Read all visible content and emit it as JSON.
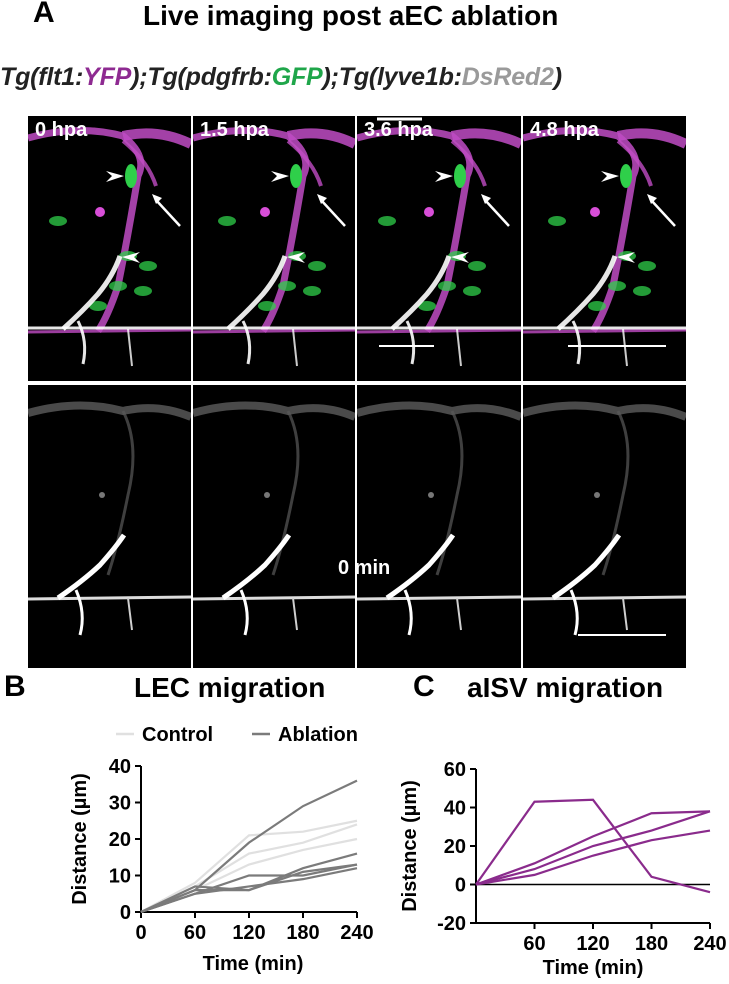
{
  "figure": {
    "panel_a": {
      "letter": "A",
      "title": "Live imaging post aEC ablation",
      "genotype": [
        {
          "text": "Tg(flt1:",
          "color": "#222222"
        },
        {
          "text": "YFP",
          "color": "#8e2a91"
        },
        {
          "text": ");Tg(pdgfrb:",
          "color": "#222222"
        },
        {
          "text": "GFP",
          "color": "#1fa64a"
        },
        {
          "text": ");Tg(lyve1b:",
          "color": "#222222"
        },
        {
          "text": "DsRed2",
          "color": "#9a9a9a"
        },
        {
          "text": ")",
          "color": "#222222"
        }
      ],
      "timepoints": [
        "0 hpa",
        "1.5 hpa",
        "3.6 hpa",
        "4.8 hpa"
      ],
      "lower_row_label": "0 min"
    },
    "panel_b": {
      "letter": "B",
      "title": "LEC migration"
    },
    "panel_c": {
      "letter": "C",
      "title": "aISV migration"
    }
  },
  "colors": {
    "control": "#e0e0e0",
    "ablation": "#7b7b7b",
    "aisv": "#8a2b8c",
    "vessel": "#c04cc4",
    "pericyte": "#2fcf4a"
  },
  "chart_data": [
    {
      "type": "line",
      "title": "LEC migration",
      "xlabel": "Time (min)",
      "ylabel": "Distance (µm)",
      "xlim": [
        0,
        240
      ],
      "ylim": [
        0,
        40
      ],
      "xticks": [
        0,
        60,
        120,
        180,
        240
      ],
      "yticks": [
        0,
        10,
        20,
        30,
        40
      ],
      "legend": {
        "position": "top",
        "entries": [
          "Control",
          "Ablation"
        ]
      },
      "series": [
        {
          "name": "Control",
          "x": [
            0,
            60,
            120,
            180,
            240
          ],
          "values": [
            0,
            8,
            21,
            22,
            25
          ]
        },
        {
          "name": "Control",
          "x": [
            0,
            60,
            120,
            180,
            240
          ],
          "values": [
            0,
            7,
            16,
            19,
            24
          ]
        },
        {
          "name": "Control",
          "x": [
            0,
            60,
            120,
            180,
            240
          ],
          "values": [
            0,
            6,
            13,
            17,
            20
          ]
        },
        {
          "name": "Ablation",
          "x": [
            0,
            60,
            120,
            180,
            240
          ],
          "values": [
            0,
            6,
            19,
            29,
            36
          ]
        },
        {
          "name": "Ablation",
          "x": [
            0,
            60,
            120,
            180,
            240
          ],
          "values": [
            0,
            7,
            6,
            12,
            16
          ]
        },
        {
          "name": "Ablation",
          "x": [
            0,
            60,
            120,
            180,
            240
          ],
          "values": [
            0,
            5,
            10,
            10,
            13
          ]
        },
        {
          "name": "Ablation",
          "x": [
            0,
            60,
            120,
            180,
            240
          ],
          "values": [
            0,
            6,
            6,
            11,
            13
          ]
        },
        {
          "name": "Ablation",
          "x": [
            0,
            60,
            120,
            180,
            240
          ],
          "values": [
            0,
            5,
            7,
            9,
            12
          ]
        }
      ]
    },
    {
      "type": "line",
      "title": "aISV migration",
      "xlabel": "Time (min)",
      "ylabel": "Distance (µm)",
      "xlim": [
        0,
        240
      ],
      "ylim": [
        -20,
        60
      ],
      "xticks": [
        60,
        120,
        180,
        240
      ],
      "yticks": [
        -20,
        0,
        20,
        40,
        60
      ],
      "series": [
        {
          "x": [
            0,
            60,
            120,
            180,
            240
          ],
          "values": [
            0,
            43,
            44,
            4,
            -4
          ]
        },
        {
          "x": [
            0,
            60,
            120,
            180,
            240
          ],
          "values": [
            0,
            11,
            25,
            37,
            38
          ]
        },
        {
          "x": [
            0,
            60,
            120,
            180,
            240
          ],
          "values": [
            0,
            8,
            20,
            28,
            38
          ]
        },
        {
          "x": [
            0,
            60,
            120,
            180,
            240
          ],
          "values": [
            0,
            5,
            15,
            23,
            28
          ]
        }
      ]
    }
  ]
}
